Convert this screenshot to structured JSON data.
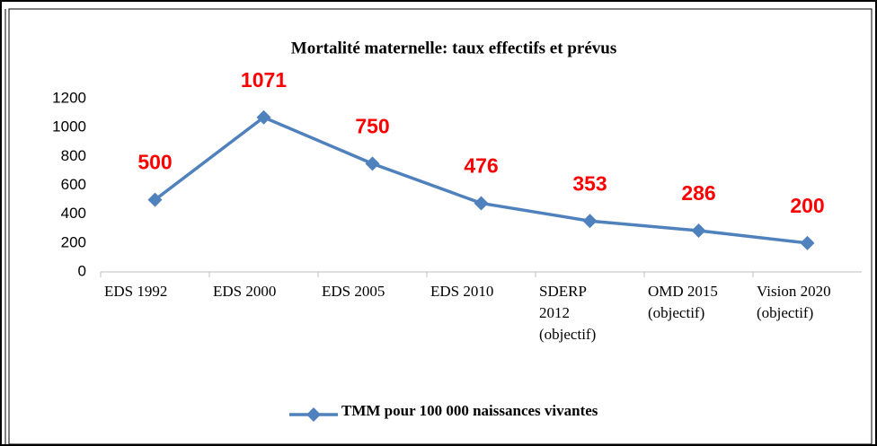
{
  "chart_data": {
    "type": "line",
    "title": "Mortalité maternelle: taux effectifs et prévus",
    "categories": [
      "EDS 1992",
      "EDS 2000",
      "EDS 2005",
      "EDS 2010",
      "SDERP\n2012\n(objectif)",
      "OMD 2015\n(objectif)",
      "Vision 2020\n(objectif)"
    ],
    "series": [
      {
        "name": "TMM pour 100 000 naissances vivantes",
        "color": "#4f81bd",
        "values": [
          500,
          1071,
          750,
          476,
          353,
          286,
          200
        ]
      }
    ],
    "label_color": "#ff0000",
    "ylim": [
      0,
      1200
    ],
    "yticks": [
      0,
      200,
      400,
      600,
      800,
      1000,
      1200
    ],
    "grid": false,
    "legend": "bottom"
  }
}
